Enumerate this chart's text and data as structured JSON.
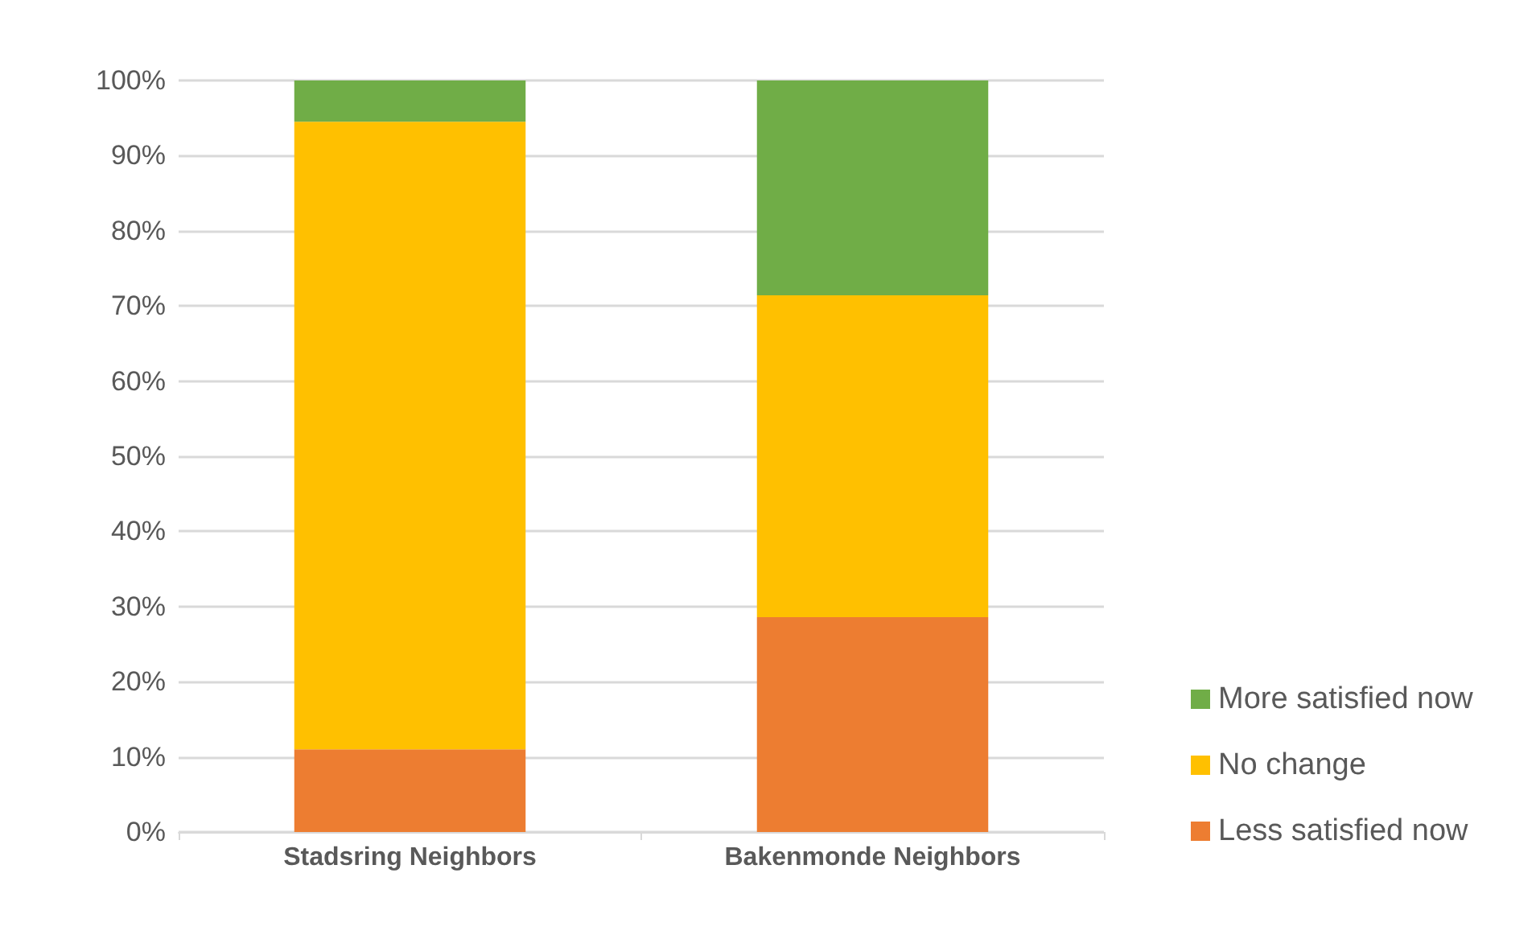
{
  "chart_data": {
    "type": "bar",
    "stacked": true,
    "categories": [
      "Stadsring Neighbors",
      "Bakenmonde Neighbors"
    ],
    "series": [
      {
        "name": "Less satisfied now",
        "color": "#ed7d31",
        "values": [
          11,
          28.6
        ]
      },
      {
        "name": "No change",
        "color": "#ffc000",
        "values": [
          83.5,
          42.8
        ]
      },
      {
        "name": "More satisfied now",
        "color": "#70ad47",
        "values": [
          5.5,
          28.6
        ]
      }
    ],
    "ylim": [
      0,
      100
    ],
    "yticks": [
      {
        "value": 0,
        "label": "0%"
      },
      {
        "value": 10,
        "label": "10%"
      },
      {
        "value": 20,
        "label": "20%"
      },
      {
        "value": 30,
        "label": "30%"
      },
      {
        "value": 40,
        "label": "40%"
      },
      {
        "value": 50,
        "label": "50%"
      },
      {
        "value": 60,
        "label": "60%"
      },
      {
        "value": 70,
        "label": "70%"
      },
      {
        "value": 80,
        "label": "80%"
      },
      {
        "value": 90,
        "label": "90%"
      },
      {
        "value": 100,
        "label": "100%"
      }
    ],
    "grid": "y",
    "legend": "right"
  }
}
